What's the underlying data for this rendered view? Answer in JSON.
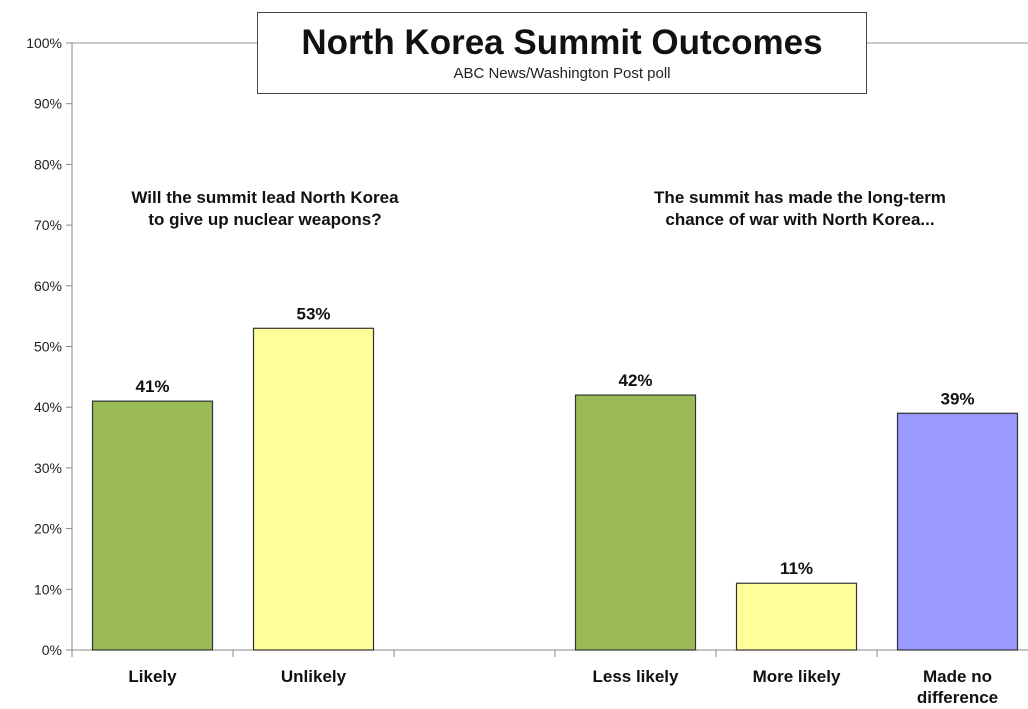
{
  "chart_data": {
    "type": "bar",
    "title": "North Korea Summit Outcomes",
    "subtitle": "ABC News/Washington  Post poll",
    "ylim": [
      0,
      100
    ],
    "yticks": [
      "0%",
      "10%",
      "20%",
      "30%",
      "40%",
      "50%",
      "60%",
      "70%",
      "80%",
      "90%",
      "100%"
    ],
    "grid": false,
    "groups": [
      {
        "annotation_lines": [
          "Will the summit lead North Korea",
          "to give up nuclear weapons?"
        ],
        "categories": [
          "Likely",
          "Unlikely"
        ],
        "values": [
          41,
          53
        ],
        "labels": [
          "41%",
          "53%"
        ],
        "colors": [
          "#9bbb59",
          "#ffff99"
        ]
      },
      {
        "annotation_lines": [
          "The summit has made the long-term",
          "chance of war with North Korea..."
        ],
        "categories": [
          "Less likely",
          "More likely",
          "Made no difference"
        ],
        "category_lines": [
          [
            "Less likely"
          ],
          [
            "More likely"
          ],
          [
            "Made no",
            "difference"
          ]
        ],
        "values": [
          42,
          11,
          39
        ],
        "labels": [
          "42%",
          "11%",
          "39%"
        ],
        "colors": [
          "#9bbb59",
          "#ffff99",
          "#9999ff"
        ]
      }
    ]
  }
}
